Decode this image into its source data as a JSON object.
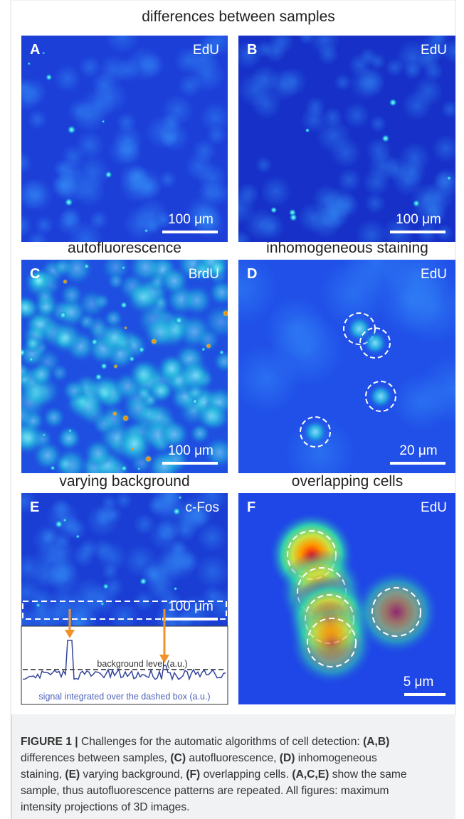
{
  "titles": [
    "differences between samples",
    "autofluorescence",
    "inhomogeneous staining",
    "varying background",
    "overlapping cells"
  ],
  "panels": [
    {
      "label": "A",
      "stain": "EdU",
      "scale": "100 μm"
    },
    {
      "label": "B",
      "stain": "EdU",
      "scale": "100 μm"
    },
    {
      "label": "C",
      "stain": "BrdU",
      "scale": "100 μm"
    },
    {
      "label": "D",
      "stain": "EdU",
      "scale": "20 μm"
    },
    {
      "label": "E",
      "stain": "c-Fos",
      "scale": "100 μm"
    },
    {
      "label": "F",
      "stain": "EdU",
      "scale": "5 μm"
    }
  ],
  "plot": {
    "background_label": "background level (a.u.)",
    "signal_label": "signal integrated over the dashed box (a.u.)"
  },
  "caption": {
    "lines": [
      [
        {
          "text": "FIGURE 1 |",
          "bold": true
        },
        {
          "text": " Challenges for the automatic algorithms of cell detection: ",
          "bold": false
        },
        {
          "text": "(A,B)",
          "bold": true
        }
      ],
      [
        {
          "text": "differences between samples, ",
          "bold": false
        },
        {
          "text": "(C)",
          "bold": true
        },
        {
          "text": " autofluorescence, ",
          "bold": false
        },
        {
          "text": "(D)",
          "bold": true
        },
        {
          "text": " inhomogeneous",
          "bold": false
        }
      ],
      [
        {
          "text": "staining, ",
          "bold": false
        },
        {
          "text": "(E)",
          "bold": true
        },
        {
          "text": " varying background, ",
          "bold": false
        },
        {
          "text": "(F)",
          "bold": true
        },
        {
          "text": " overlapping cells. ",
          "bold": false
        },
        {
          "text": "(A,C,E)",
          "bold": true
        },
        {
          "text": " show the same",
          "bold": false
        }
      ],
      [
        {
          "text": "sample, thus autofluorescence patterns are repeated. All figures: maximum",
          "bold": false
        }
      ],
      [
        {
          "text": "intensity projections of 3D images.",
          "bold": false
        }
      ]
    ]
  }
}
